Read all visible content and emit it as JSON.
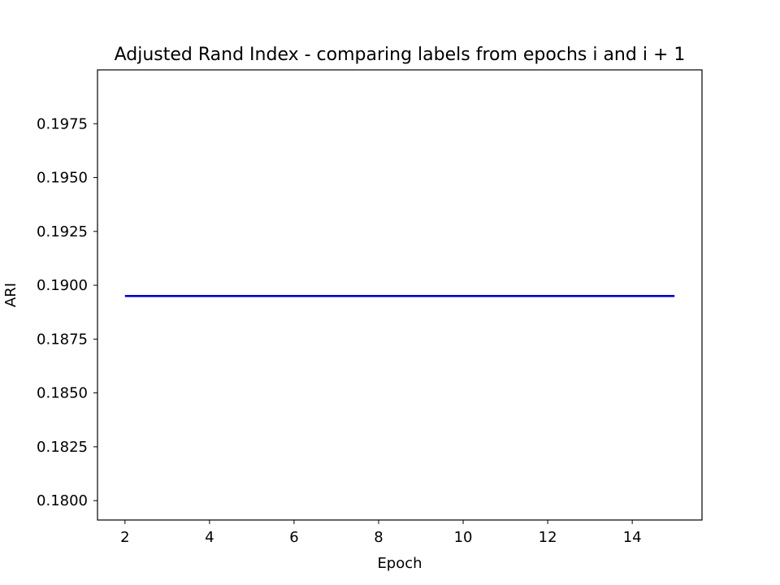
{
  "chart_data": {
    "type": "line",
    "title": "Adjusted Rand Index - comparing labels from epochs i and i + 1",
    "xlabel": "Epoch",
    "ylabel": "ARI",
    "xlim": [
      1.35,
      15.65
    ],
    "ylim": [
      0.1791,
      0.2
    ],
    "xticks": [
      2,
      4,
      6,
      8,
      10,
      12,
      14
    ],
    "xtick_labels": [
      "2",
      "4",
      "6",
      "8",
      "10",
      "12",
      "14"
    ],
    "yticks": [
      0.18,
      0.1825,
      0.185,
      0.1875,
      0.19,
      0.1925,
      0.195,
      0.1975
    ],
    "ytick_labels": [
      "0.1800",
      "0.1825",
      "0.1850",
      "0.1875",
      "0.1900",
      "0.1925",
      "0.1950",
      "0.1975"
    ],
    "grid": false,
    "series": [
      {
        "color": "#0000cc",
        "x": [
          2,
          3,
          4,
          5,
          6,
          7,
          8,
          9,
          10,
          11,
          12,
          13,
          14,
          15
        ],
        "values": [
          0.1895,
          0.1895,
          0.1895,
          0.1895,
          0.1895,
          0.1895,
          0.1895,
          0.1895,
          0.1895,
          0.1895,
          0.1895,
          0.1895,
          0.1895,
          0.1895
        ]
      }
    ]
  }
}
